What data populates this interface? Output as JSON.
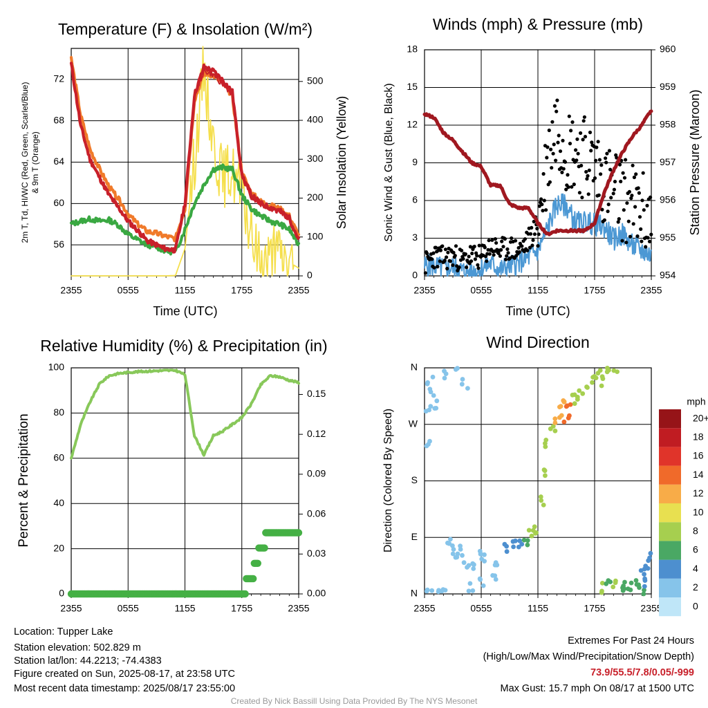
{
  "colors": {
    "t2m": "#c8202a",
    "hi_wc": "#3aa842",
    "t9m": "#f07a2a",
    "insolation": "#f5df4d",
    "pressure": "#a01820",
    "wind": "#4c98d4",
    "gust": "#000000",
    "rh": "#88c85a",
    "precip": "#45b045",
    "extremes": "#c8202a",
    "credit": "#999999"
  },
  "panels": {
    "temp": {
      "title": "Temperature (F) & Insolation (W/m²)",
      "ylabel_left_1": "2m T, Td, HI/WC (Red, Green, Scarlet/Blue)",
      "ylabel_left_2": "& 9m T (Orange)",
      "ylabel_right": "Solar Insolation (Yellow)",
      "xlabel": "Time (UTC)",
      "xticks": [
        "2355",
        "0555",
        "1155",
        "1755",
        "2355"
      ],
      "yticks_left": [
        "56",
        "60",
        "64",
        "68",
        "72"
      ],
      "yticks_right": [
        "0",
        "100",
        "200",
        "300",
        "400",
        "500"
      ]
    },
    "wind": {
      "title": "Winds (mph) & Pressure (mb)",
      "ylabel_left": "Sonic Wind & Gust (Blue, Black)",
      "ylabel_right": "Station Pressure (Maroon)",
      "xlabel": "Time (UTC)",
      "xticks": [
        "2355",
        "0555",
        "1155",
        "1755",
        "2355"
      ],
      "yticks_left": [
        "0",
        "3",
        "6",
        "9",
        "12",
        "15",
        "18"
      ],
      "yticks_right": [
        "954",
        "955",
        "956",
        "957",
        "958",
        "959",
        "960"
      ]
    },
    "rh": {
      "title": "Relative Humidity (%) & Precipitation (in)",
      "ylabel_left": "Percent & Precipitation",
      "xticks": [
        "2355",
        "0555",
        "1155",
        "1755",
        "2355"
      ],
      "yticks_left": [
        "0",
        "20",
        "40",
        "60",
        "80",
        "100"
      ],
      "yticks_right": [
        "0.00",
        "0.03",
        "0.06",
        "0.09",
        "0.12",
        "0.15"
      ]
    },
    "dir": {
      "title": "Wind Direction",
      "ylabel_left": "Direction (Colored By Speed)",
      "xticks": [
        "2355",
        "0555",
        "1155",
        "1755",
        "2355"
      ],
      "yticks_left": [
        "N",
        "E",
        "S",
        "W",
        "N"
      ],
      "legend_title": "mph",
      "legend_labels": [
        "0",
        "2",
        "4",
        "6",
        "8",
        "10",
        "12",
        "14",
        "16",
        "18",
        "20+"
      ],
      "legend_colors": [
        "#bfe6f8",
        "#86c4ea",
        "#4d8fcf",
        "#4aa864",
        "#a6cf4f",
        "#e8e050",
        "#f8ac48",
        "#f06a2a",
        "#e0342a",
        "#c01c22",
        "#961418"
      ]
    }
  },
  "chart_data": [
    {
      "type": "line",
      "title": "Temperature (F) & Insolation (W/m²)",
      "xlabel": "Time (UTC)",
      "ylabel": "2m T, Td, HI/WC (Red, Green, Scarlet/Blue) & 9m T (Orange)",
      "y2label": "Solar Insolation (Yellow)",
      "x_hours": [
        0,
        1,
        2,
        3,
        4,
        5,
        6,
        7,
        8,
        9,
        10,
        11,
        12,
        13,
        14,
        15,
        16,
        17,
        18,
        19,
        20,
        21,
        22,
        23,
        24
      ],
      "xlim": [
        0,
        24
      ],
      "ylim": [
        53,
        75
      ],
      "y2lim": [
        0,
        585
      ],
      "series": [
        {
          "name": "2m T",
          "axis": "left",
          "values": [
            73.5,
            67.5,
            64.2,
            62.5,
            60.8,
            59.6,
            58.3,
            57.4,
            56.4,
            56.0,
            55.6,
            55.5,
            60.0,
            70.5,
            73.2,
            72.8,
            71.9,
            70.8,
            62.8,
            60.8,
            60.0,
            59.6,
            59.3,
            58.6,
            56.5
          ]
        },
        {
          "name": "HI/WC",
          "axis": "left",
          "values": [
            73.5,
            67.5,
            64.2,
            62.5,
            60.8,
            59.6,
            58.3,
            57.4,
            56.4,
            56.0,
            55.6,
            55.5,
            60.0,
            70.3,
            72.8,
            72.4,
            71.5,
            70.5,
            62.6,
            60.6,
            59.9,
            59.5,
            59.2,
            58.5,
            56.4
          ]
        },
        {
          "name": "Td",
          "axis": "left",
          "values": [
            58.0,
            58.3,
            58.5,
            58.3,
            58.4,
            57.9,
            57.0,
            56.5,
            56.0,
            55.8,
            55.4,
            55.3,
            57.5,
            60.0,
            61.8,
            63.3,
            63.5,
            63.3,
            60.8,
            59.5,
            58.8,
            58.3,
            58.0,
            57.5,
            56.0
          ]
        },
        {
          "name": "9m T",
          "axis": "left",
          "values": [
            74.0,
            68.5,
            65.2,
            63.3,
            61.6,
            60.4,
            59.0,
            58.0,
            57.3,
            57.1,
            56.8,
            56.6,
            59.5,
            70.0,
            72.6,
            72.4,
            71.6,
            70.4,
            63.0,
            61.0,
            60.2,
            59.8,
            59.5,
            58.8,
            56.9
          ]
        },
        {
          "name": "Insolation",
          "axis": "right",
          "values": [
            0,
            0,
            0,
            0,
            0,
            0,
            0,
            0,
            0,
            0,
            0,
            1,
            70,
            300,
            540,
            340,
            250,
            270,
            210,
            100,
            40,
            45,
            60,
            35,
            20
          ]
        }
      ]
    },
    {
      "type": "line",
      "title": "Winds (mph) & Pressure (mb)",
      "xlabel": "Time (UTC)",
      "ylabel": "Sonic Wind & Gust (Blue, Black)",
      "y2label": "Station Pressure (Maroon)",
      "x_hours": [
        0,
        1,
        2,
        3,
        4,
        5,
        6,
        7,
        8,
        9,
        10,
        11,
        12,
        13,
        14,
        15,
        16,
        17,
        18,
        19,
        20,
        21,
        22,
        23,
        24
      ],
      "xlim": [
        0,
        24
      ],
      "ylim": [
        0,
        18
      ],
      "y2lim": [
        954,
        960
      ],
      "series": [
        {
          "name": "Sonic Wind",
          "axis": "left",
          "values": [
            0.8,
            0.8,
            0.6,
            0.7,
            0.4,
            0.3,
            0.6,
            1.0,
            0.5,
            0.8,
            1.0,
            1.5,
            2.0,
            3.8,
            5.7,
            5.6,
            4.2,
            4.3,
            4.1,
            3.9,
            2.9,
            3.3,
            2.4,
            2.0,
            1.6
          ]
        },
        {
          "name": "Gust",
          "axis": "left",
          "values": [
            0.9,
            1.6,
            1.4,
            1.6,
            1.2,
            1.6,
            1.4,
            2.4,
            2.0,
            2.2,
            2.0,
            2.8,
            4.2,
            9.0,
            12.5,
            10.2,
            10.0,
            9.5,
            8.8,
            7.5,
            6.8,
            6.2,
            5.6,
            5.0,
            4.2
          ]
        },
        {
          "name": "Pressure",
          "axis": "right",
          "values": [
            958.3,
            958.2,
            957.8,
            957.6,
            957.3,
            957.0,
            956.9,
            956.4,
            956.4,
            955.9,
            955.8,
            955.8,
            955.4,
            955.1,
            955.2,
            955.2,
            955.2,
            955.2,
            955.4,
            956.2,
            956.8,
            957.3,
            957.7,
            958.0,
            958.4
          ]
        }
      ]
    },
    {
      "type": "line",
      "title": "Relative Humidity (%) & Precipitation (in)",
      "ylabel": "Percent & Precipitation",
      "x_hours": [
        0,
        1,
        2,
        3,
        4,
        5,
        6,
        7,
        8,
        9,
        10,
        11,
        12,
        13,
        14,
        15,
        16,
        17,
        18,
        19,
        20,
        21,
        22,
        23,
        24
      ],
      "xlim": [
        0,
        24
      ],
      "ylim": [
        0,
        100
      ],
      "y2lim": [
        0,
        0.17
      ],
      "series": [
        {
          "name": "Relative Humidity",
          "axis": "left",
          "values": [
            60,
            75,
            85,
            93,
            96.5,
            97.5,
            98,
            98.3,
            98.5,
            98.7,
            98.8,
            98.9,
            97,
            70,
            61.5,
            70,
            72,
            75,
            78,
            84,
            92.5,
            96.5,
            96,
            94.5,
            93.5
          ]
        },
        {
          "name": "Precipitation",
          "axis": "right",
          "values": [
            0,
            0,
            0,
            0,
            0,
            0,
            0,
            0,
            0,
            0,
            0,
            0,
            0,
            0,
            0,
            0,
            0,
            0,
            0,
            0.012,
            0.034,
            0.047,
            0.047,
            0.047,
            0.047
          ]
        }
      ]
    },
    {
      "type": "scatter",
      "title": "Wind Direction",
      "ylabel": "Direction (Colored By Speed)",
      "xlim": [
        0,
        24
      ],
      "ylim": [
        0,
        360
      ],
      "points": [
        [
          0.4,
          290,
          1
        ],
        [
          0.6,
          340,
          1
        ],
        [
          0.8,
          320,
          1
        ],
        [
          1.1,
          300,
          1
        ],
        [
          2.2,
          350,
          1
        ],
        [
          3.3,
          358,
          1
        ],
        [
          4.3,
          335,
          1
        ],
        [
          0.2,
          240,
          1
        ],
        [
          0.5,
          5,
          1
        ],
        [
          1.5,
          5,
          1
        ],
        [
          2.1,
          3,
          1
        ],
        [
          2.5,
          85,
          1
        ],
        [
          2.8,
          70,
          1
        ],
        [
          3.4,
          55,
          1
        ],
        [
          3.9,
          70,
          1
        ],
        [
          4.4,
          50,
          1
        ],
        [
          5.1,
          45,
          1
        ],
        [
          5.7,
          65,
          1
        ],
        [
          6.4,
          55,
          1
        ],
        [
          7.5,
          48,
          1
        ],
        [
          4.9,
          10,
          1
        ],
        [
          6.2,
          20,
          1
        ],
        [
          7.4,
          30,
          1
        ],
        [
          8.5,
          72,
          2
        ],
        [
          9.3,
          78,
          2
        ],
        [
          10.0,
          80,
          2
        ],
        [
          10.8,
          85,
          3
        ],
        [
          11.3,
          94,
          4
        ],
        [
          11.8,
          100,
          4
        ],
        [
          12.4,
          150,
          4
        ],
        [
          12.7,
          190,
          4
        ],
        [
          13.1,
          240,
          4
        ],
        [
          13.6,
          260,
          4
        ],
        [
          14.0,
          275,
          6
        ],
        [
          14.3,
          290,
          6
        ],
        [
          14.6,
          300,
          6
        ],
        [
          15.0,
          280,
          7
        ],
        [
          15.2,
          300,
          7
        ],
        [
          15.8,
          310,
          4
        ],
        [
          16.3,
          315,
          4
        ],
        [
          17.0,
          325,
          4
        ],
        [
          17.8,
          340,
          4
        ],
        [
          18.4,
          350,
          4
        ],
        [
          19.0,
          340,
          4
        ],
        [
          19.6,
          355,
          4
        ],
        [
          20.3,
          358,
          4
        ],
        [
          18.8,
          10,
          4
        ],
        [
          19.5,
          20,
          3
        ],
        [
          20.3,
          15,
          4
        ],
        [
          21.0,
          12,
          3
        ],
        [
          21.7,
          10,
          3
        ],
        [
          22.6,
          20,
          3
        ],
        [
          23.0,
          35,
          2
        ],
        [
          23.5,
          45,
          2
        ],
        [
          23.8,
          65,
          2
        ],
        [
          22.9,
          5,
          3
        ],
        [
          20.8,
          5,
          3
        ],
        [
          23.2,
          18,
          2
        ]
      ]
    }
  ],
  "footer": {
    "location": "Location: Tupper Lake",
    "elevation": "Station elevation: 502.829 m",
    "latlon": "Station lat/lon: 44.2213; -74.4383",
    "created": "Figure created on Sun, 2025-08-17, at 23:58 UTC",
    "recent": "Most recent data timestamp: 2025/08/17 23:55:00",
    "extremes_title": "Extremes For Past 24 Hours",
    "extremes_desc": "(High/Low/Max Wind/Precipitation/Snow Depth)",
    "extremes_values": "73.9/55.5/7.8/0.05/-999",
    "max_gust": "Max Gust: 15.7 mph On 08/17 at 1500 UTC",
    "credit": "Created By Nick Bassill Using Data Provided By The NYS Mesonet"
  }
}
